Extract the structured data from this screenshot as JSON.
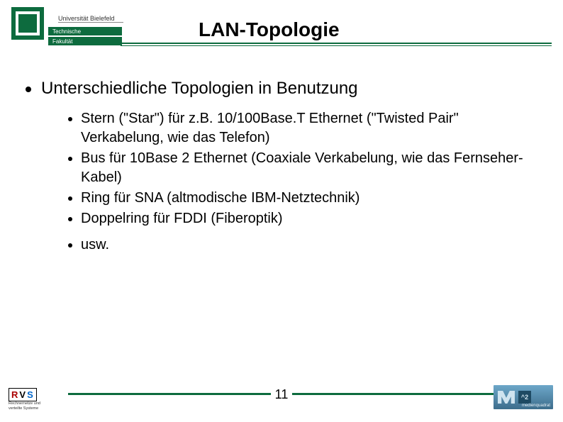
{
  "colors": {
    "accent": "#0d6b3e",
    "text": "#000000",
    "background": "#ffffff"
  },
  "fonts": {
    "title_size_pt": 28,
    "lvl1_size_pt": 24,
    "lvl2_size_pt": 20,
    "family": "Arial"
  },
  "header": {
    "university": "Universität Bielefeld",
    "faculty_line1": "Technische",
    "faculty_line2": "Fakultät",
    "title": "LAN-Topologie"
  },
  "content": {
    "main_bullet": "Unterschiedliche Topologien in Benutzung",
    "sub_bullets": [
      "Stern (\"Star\") für z.B. 10/100Base.T Ethernet (\"Twisted Pair\" Verkabelung, wie das Telefon)",
      "Bus  für 10Base 2 Ethernet (Coaxiale Verkabelung, wie das Fernseher-Kabel)",
      "Ring für SNA (altmodische IBM-Netztechnik)",
      "Doppelring für FDDI (Fiberoptik)",
      "usw."
    ]
  },
  "footer": {
    "page_number": "11",
    "rvs_label": "RVS",
    "rvs_sub1": "Rechnernetze und",
    "rvs_sub2": "verteilte Systeme",
    "mq_exp": "^2",
    "mq_text": "medienquadrat"
  }
}
